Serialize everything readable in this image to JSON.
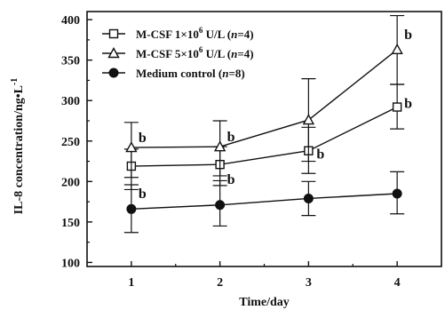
{
  "chart_data": {
    "type": "line",
    "xlabel": "Time/day",
    "ylabel": "IL-8 concentration/ng•L",
    "ylabel_sup": "-1",
    "x": [
      1,
      2,
      3,
      4
    ],
    "x_tick_labels": [
      "1",
      "2",
      "3",
      "4"
    ],
    "xlim": [
      0.5,
      4.5
    ],
    "ylim": [
      95,
      410
    ],
    "y_ticks": [
      100,
      150,
      200,
      250,
      300,
      350,
      400
    ],
    "y_tick_labels": [
      "100",
      "150",
      "200",
      "250",
      "300",
      "350",
      "400"
    ],
    "grid": false,
    "legend_position": "top-left",
    "series": [
      {
        "marker": "square-open",
        "legend_parts": [
          "M-CSF 1×10",
          "6",
          " U/L (",
          "n",
          "=4)"
        ],
        "values": [
          219,
          221,
          238,
          292
        ],
        "error_upper": [
          240,
          243,
          267,
          320
        ],
        "error_lower": [
          190,
          195,
          210,
          265
        ],
        "annotations": [
          "b",
          "b",
          "b",
          "b"
        ]
      },
      {
        "marker": "triangle-open",
        "legend_parts": [
          "M-CSF 5×10",
          "6",
          " U/L (",
          "n",
          "=4)"
        ],
        "values": [
          242,
          243,
          276,
          363
        ],
        "error_upper": [
          273,
          275,
          327,
          405
        ],
        "error_lower": [
          205,
          207,
          225,
          320
        ],
        "annotations": [
          "b",
          "b",
          "",
          "b"
        ]
      },
      {
        "marker": "circle-filled",
        "legend_parts": [
          "Medium control (",
          "n",
          "=8)"
        ],
        "values": [
          166,
          171,
          179,
          185
        ],
        "error_upper": [
          196,
          201,
          200,
          212
        ],
        "error_lower": [
          137,
          145,
          158,
          160
        ],
        "annotations": [
          "",
          "",
          "",
          ""
        ]
      }
    ]
  }
}
